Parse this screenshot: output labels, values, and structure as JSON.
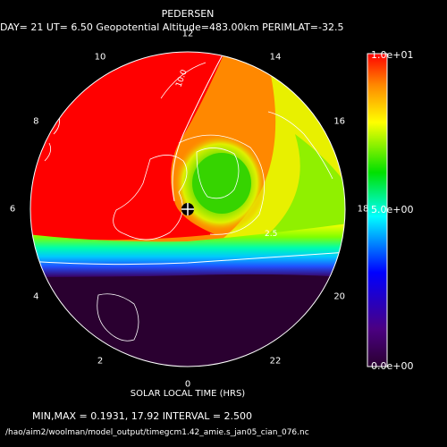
{
  "header": {
    "title": "PEDERSEN",
    "subtitle": "DAY= 21 UT= 6.50 Geopotential Altitude=483.00km PERIMLAT=-32.5"
  },
  "plot": {
    "xlabel": "SOLAR LOCAL TIME (HRS)",
    "hour_labels": [
      {
        "text": "12",
        "hour": 12
      },
      {
        "text": "14",
        "hour": 14
      },
      {
        "text": "16",
        "hour": 16
      },
      {
        "text": "18",
        "hour": 18
      },
      {
        "text": "20",
        "hour": 20
      },
      {
        "text": "22",
        "hour": 22
      },
      {
        "text": "0",
        "hour": 0
      },
      {
        "text": "2",
        "hour": 2
      },
      {
        "text": "4",
        "hour": 4
      },
      {
        "text": "6",
        "hour": 6
      },
      {
        "text": "8",
        "hour": 8
      },
      {
        "text": "10",
        "hour": 10
      }
    ],
    "contour_label": "10.0",
    "contour_label_2": "2.5"
  },
  "colorbar": {
    "max_label": "1.0e+01",
    "mid_label": "5.0e+00",
    "min_label": "0.0e+00",
    "colors": [
      "#ff0000",
      "#ff8800",
      "#ffff00",
      "#00e000",
      "#00ffff",
      "#0000ff",
      "#4b0082",
      "#2a0030"
    ]
  },
  "footer": {
    "stats": "MIN,MAX =     0.1931,      17.92 INTERVAL =       2.500",
    "filepath": "/hao/aim2/woolman/model_output/timegcm1.42_amie.s_jan05_cian_076.nc"
  }
}
